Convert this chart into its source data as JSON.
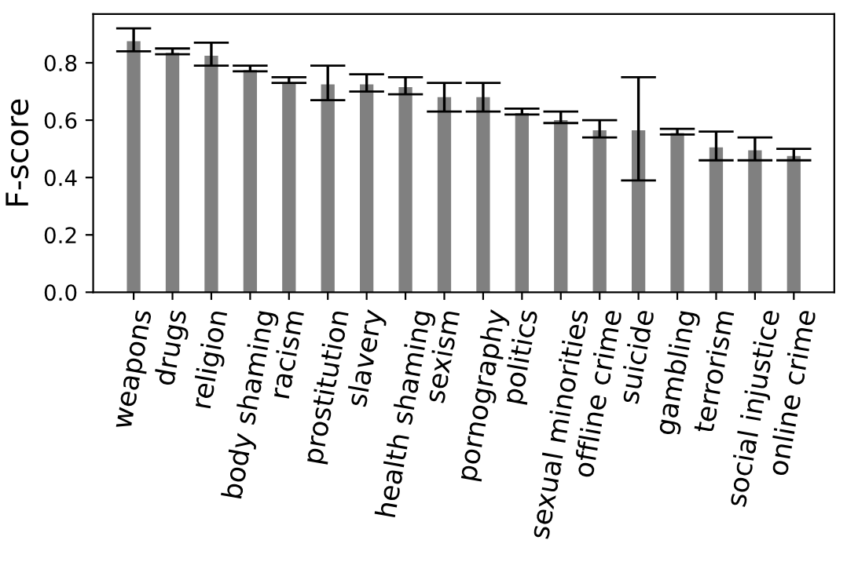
{
  "chart_data": {
    "type": "bar",
    "ylabel": "F-score",
    "categories": [
      "weapons",
      "drugs",
      "religion",
      "body shaming",
      "racism",
      "prostitution",
      "slavery",
      "health shaming",
      "sexism",
      "pornography",
      "politics",
      "sexual minorities",
      "offline crime",
      "suicide",
      "gambling",
      "terrorism",
      "social injustice",
      "online crime"
    ],
    "values": [
      0.875,
      0.835,
      0.825,
      0.775,
      0.73,
      0.725,
      0.725,
      0.715,
      0.68,
      0.68,
      0.625,
      0.6,
      0.565,
      0.565,
      0.555,
      0.505,
      0.495,
      0.475
    ],
    "errors": [
      [
        0.84,
        0.92
      ],
      [
        0.83,
        0.85
      ],
      [
        0.79,
        0.87
      ],
      [
        0.77,
        0.79
      ],
      [
        0.73,
        0.75
      ],
      [
        0.67,
        0.79
      ],
      [
        0.7,
        0.76
      ],
      [
        0.69,
        0.75
      ],
      [
        0.63,
        0.73
      ],
      [
        0.63,
        0.73
      ],
      [
        0.62,
        0.64
      ],
      [
        0.59,
        0.63
      ],
      [
        0.54,
        0.6
      ],
      [
        0.39,
        0.75
      ],
      [
        0.55,
        0.57
      ],
      [
        0.46,
        0.56
      ],
      [
        0.46,
        0.54
      ],
      [
        0.46,
        0.5
      ]
    ],
    "color": "#808080",
    "ylim": [
      0,
      0.97
    ],
    "yticks": [
      {
        "value": 0,
        "label": "0.0"
      },
      {
        "value": 0.2,
        "label": "0.2"
      },
      {
        "value": 0.4,
        "label": "0.4"
      },
      {
        "value": 0.6,
        "label": "0.6"
      },
      {
        "value": 0.8,
        "label": "0.8"
      }
    ],
    "grid": false
  }
}
